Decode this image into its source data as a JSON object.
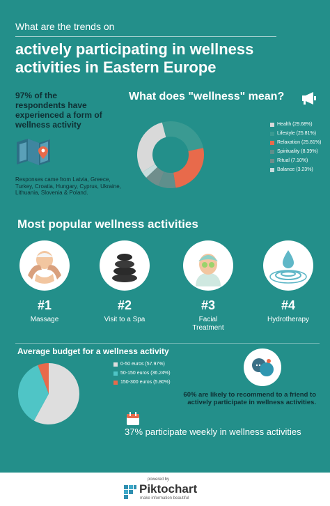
{
  "header": {
    "subtitle": "What are the trends on",
    "title": "actively participating in wellness activities in Eastern Europe"
  },
  "stat_left": {
    "text": "97% of the respondents have experienced a form of wellness activity",
    "countries": "Responses came from Latvia, Greece, Turkey, Croatia, Hungary, Cyprus, Ukraine, Lithuania, Slovenia & Poland."
  },
  "wellness_section": {
    "heading": "What does \"wellness\" mean?"
  },
  "activities": {
    "heading": "Most popular wellness activities",
    "items": [
      {
        "rank": "#1",
        "name": "Massage"
      },
      {
        "rank": "#2",
        "name": "Visit to a Spa"
      },
      {
        "rank": "#3",
        "name": "Facial Treatment"
      },
      {
        "rank": "#4",
        "name": "Hydrotherapy"
      }
    ]
  },
  "recommend": {
    "text": "60% are likely to recommend to a friend to actively participate in wellness activities."
  },
  "weekly": {
    "text": "37% participate weekly in wellness activities"
  },
  "footer": {
    "powered": "powered by",
    "brand": "Piktochart",
    "tagline": "make information beautiful"
  },
  "colors": {
    "background": "#238f8a",
    "health": "#d9d9d9",
    "lifestyle": "#3a9a92",
    "relaxation": "#e86a4b",
    "spirituality": "#5f8f8c",
    "ritual": "#6f8e8c",
    "balance": "#c7dcdc",
    "budget_low": "#dedede",
    "budget_mid": "#4fc5c6",
    "budget_high": "#e86a4b"
  },
  "chart_data": [
    {
      "type": "pie",
      "title": "What does \"wellness\" mean?",
      "style": "donut",
      "categories": [
        "Health (29.68%)",
        "Lifestyle (25.81%)",
        "Relaxation (25.81%)",
        "Spirituality (8.39%)",
        "Ritual (7.10%)",
        "Balance (3.23%)"
      ],
      "values": [
        29.68,
        25.81,
        25.81,
        8.39,
        7.1,
        3.23
      ],
      "colors": [
        "#d9d9d9",
        "#3a9a92",
        "#e86a4b",
        "#5f8f8c",
        "#6f8e8c",
        "#c7dcdc"
      ],
      "legend": "right"
    },
    {
      "type": "pie",
      "title": "Average budget for a wellness activity",
      "categories": [
        "0-50 euros (57.97%)",
        "50-150 euros (36.24%)",
        "150-300 euros (5.80%)"
      ],
      "values": [
        57.97,
        36.24,
        5.8
      ],
      "colors": [
        "#dedede",
        "#4fc5c6",
        "#e86a4b"
      ],
      "legend": "right"
    }
  ]
}
